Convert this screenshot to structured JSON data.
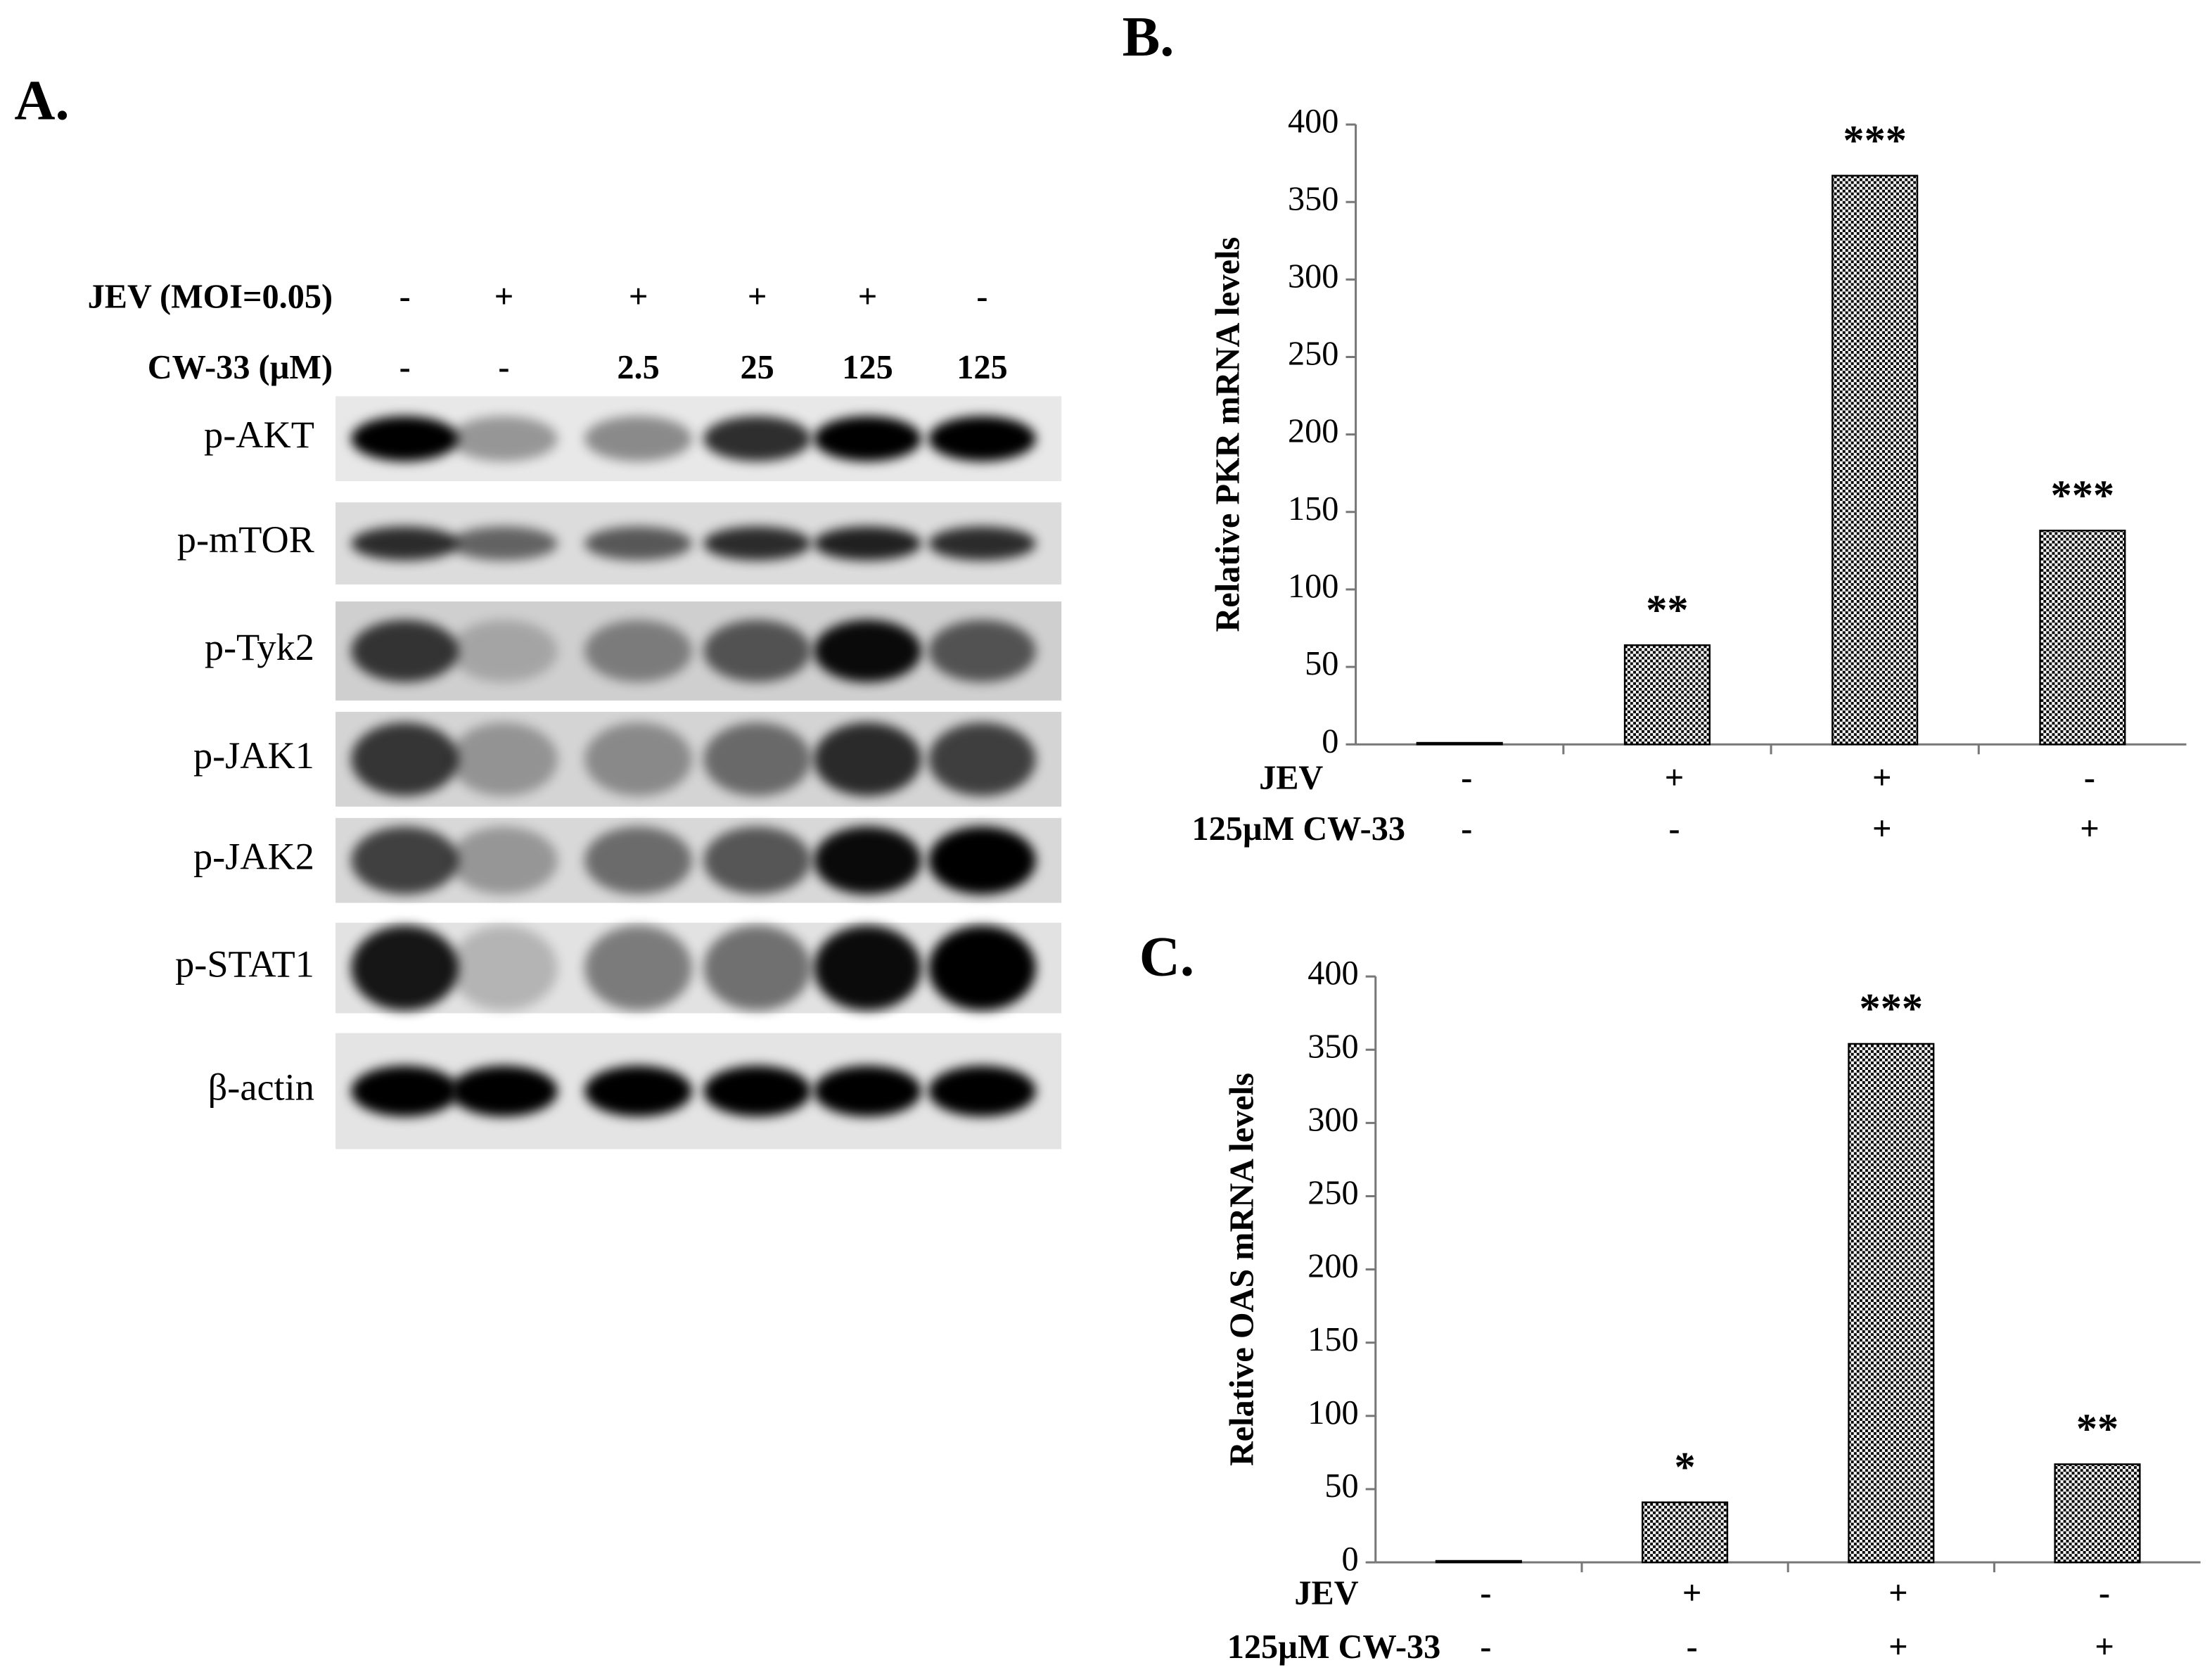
{
  "blot": {
    "panel_label": "A.",
    "conditions": [
      {
        "name": "JEV (MOI=0.05)",
        "values": [
          "-",
          "+",
          "+",
          "+",
          "+",
          "-"
        ]
      },
      {
        "name": "CW-33 (µM)",
        "values": [
          "-",
          "-",
          "2.5",
          "25",
          "125",
          "125"
        ]
      }
    ],
    "proteins": [
      "p-AKT",
      "p-mTOR",
      "p-Tyk2",
      "p-JAK1",
      "p-JAK2",
      "p-STAT1",
      "β-actin"
    ]
  },
  "chart_data": [
    {
      "type": "bar",
      "panel_label": "B.",
      "y_label": "Relative PKR mRNA levels",
      "values": [
        1,
        64,
        367,
        138
      ],
      "annotations": [
        null,
        "**",
        "***",
        "***"
      ],
      "color": "#000000",
      "ylim": [
        0,
        400
      ],
      "yticks": [
        0,
        50,
        100,
        150,
        200,
        250,
        300,
        350,
        400
      ],
      "rows": [
        {
          "name": "JEV",
          "values": [
            "-",
            "+",
            "+",
            "-"
          ]
        },
        {
          "name": "125µM CW-33",
          "values": [
            "-",
            "-",
            "+",
            "+"
          ]
        }
      ]
    },
    {
      "type": "bar",
      "panel_label": "C.",
      "y_label": "Relative OAS mRNA levels",
      "values": [
        1,
        41,
        354,
        67
      ],
      "annotations": [
        null,
        "*",
        "***",
        "**"
      ],
      "color": "#000000",
      "ylim": [
        0,
        400
      ],
      "yticks": [
        0,
        50,
        100,
        150,
        200,
        250,
        300,
        350,
        400
      ],
      "rows": [
        {
          "name": "JEV",
          "values": [
            "-",
            "+",
            "+",
            "-"
          ]
        },
        {
          "name": "125µM CW-33",
          "values": [
            "-",
            "-",
            "+",
            "+"
          ]
        }
      ]
    }
  ]
}
